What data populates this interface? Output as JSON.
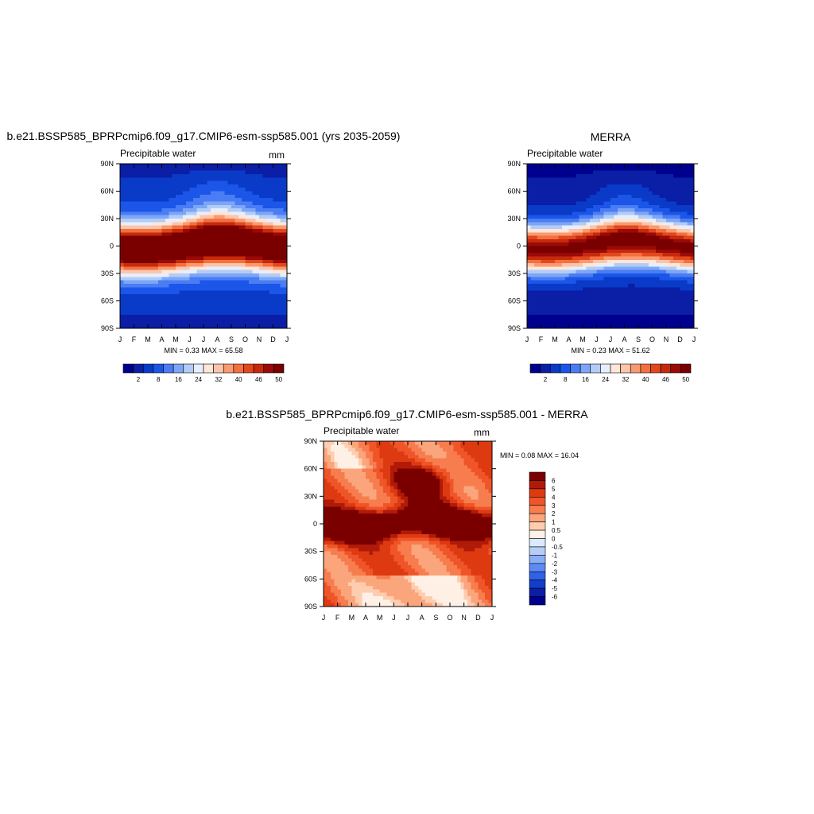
{
  "chart_data": [
    {
      "type": "heatmap",
      "title": "b.e21.BSSP585_BPRPcmip6.f09_g17.CMIP6-esm-ssp585.001 (yrs 2035-2059)",
      "left_label": "Precipitable water",
      "units": "mm",
      "x_ticks": [
        "J",
        "F",
        "M",
        "A",
        "M",
        "J",
        "J",
        "A",
        "S",
        "O",
        "N",
        "D",
        "J"
      ],
      "y_ticks": [
        "90N",
        "60N",
        "30N",
        "0",
        "30S",
        "60S",
        "90S"
      ],
      "min_label": "MIN =",
      "min_value": "0.33",
      "max_label": "MAX =",
      "max_value": "65.58",
      "colorbar_orientation": "horizontal",
      "colorbar_labels": [
        "2",
        "8",
        "16",
        "24",
        "32",
        "40",
        "46",
        "50"
      ],
      "colors": [
        "#00008f",
        "#0a1ea6",
        "#0a3ac8",
        "#1b56e8",
        "#4a7df4",
        "#7ea6f6",
        "#b3ccf7",
        "#e6efff",
        "#ffe6d6",
        "#fcc4aa",
        "#f99a72",
        "#f3703f",
        "#e3481d",
        "#c62a0c",
        "#990a08",
        "#7a0000"
      ]
    },
    {
      "type": "heatmap",
      "title": "MERRA",
      "left_label": "Precipitable water",
      "x_ticks": [
        "J",
        "F",
        "M",
        "A",
        "M",
        "J",
        "J",
        "A",
        "S",
        "O",
        "N",
        "D",
        "J"
      ],
      "y_ticks": [
        "90N",
        "60N",
        "30N",
        "0",
        "30S",
        "60S",
        "90S"
      ],
      "min_label": "MIN =",
      "min_value": "0.23",
      "max_label": "MAX =",
      "max_value": "51.62",
      "colorbar_orientation": "horizontal",
      "colorbar_labels": [
        "2",
        "8",
        "16",
        "24",
        "32",
        "40",
        "46",
        "50"
      ],
      "colors": [
        "#00008f",
        "#0a1ea6",
        "#0a3ac8",
        "#1b56e8",
        "#4a7df4",
        "#7ea6f6",
        "#b3ccf7",
        "#e6efff",
        "#ffe6d6",
        "#fcc4aa",
        "#f99a72",
        "#f3703f",
        "#e3481d",
        "#c62a0c",
        "#990a08",
        "#7a0000"
      ]
    },
    {
      "type": "heatmap",
      "title": "b.e21.BSSP585_BPRPcmip6.f09_g17.CMIP6-esm-ssp585.001 - MERRA",
      "left_label": "Precipitable water",
      "units": "mm",
      "x_ticks": [
        "J",
        "F",
        "M",
        "A",
        "M",
        "J",
        "J",
        "A",
        "S",
        "O",
        "N",
        "D",
        "J"
      ],
      "y_ticks": [
        "90N",
        "60N",
        "30N",
        "0",
        "30S",
        "60S",
        "90S"
      ],
      "min_label": "MIN =",
      "min_value": "0.08",
      "max_label": "MAX =",
      "max_value": "16.04",
      "colorbar_orientation": "vertical",
      "colorbar_labels": [
        "6",
        "5",
        "4",
        "3",
        "2",
        "1",
        "0.5",
        "0",
        "-0.5",
        "-1",
        "-2",
        "-3",
        "-4",
        "-5",
        "-6"
      ],
      "colors": [
        "#7a0000",
        "#b01a08",
        "#de3a12",
        "#f0552a",
        "#f77d4e",
        "#fba57d",
        "#fecdb0",
        "#fff0e5",
        "#dceafe",
        "#b6cdf7",
        "#8aaef6",
        "#5c8af2",
        "#2f62e6",
        "#123ec8",
        "#0a1ea6",
        "#00008f"
      ]
    }
  ]
}
